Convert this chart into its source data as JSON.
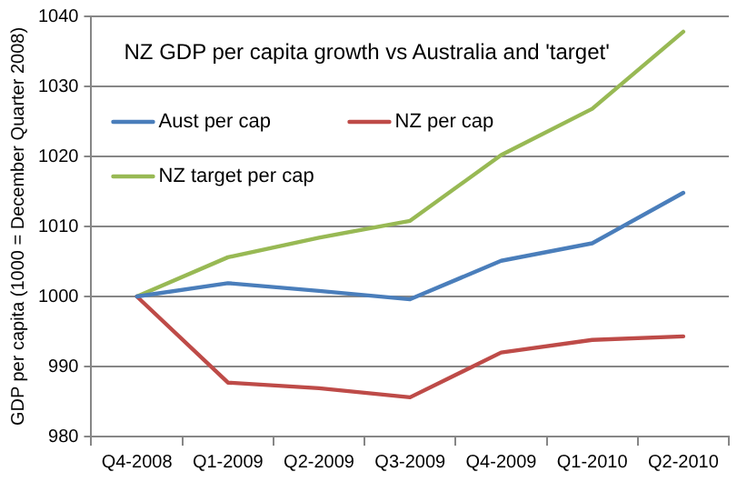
{
  "chart_data": {
    "type": "line",
    "title": "NZ GDP per capita growth vs Australia and 'target'",
    "ylabel": "GDP per capita (1000 = December Quarter 2008)",
    "categories": [
      "Q4-2008",
      "Q1-2009",
      "Q2-2009",
      "Q3-2009",
      "Q4-2009",
      "Q1-2010",
      "Q2-2010"
    ],
    "series": [
      {
        "name": "Aust per cap",
        "color": "#4a7ebb",
        "values": [
          1000,
          1001.9,
          1000.8,
          999.6,
          1005.1,
          1007.6,
          1014.8
        ]
      },
      {
        "name": "NZ per cap",
        "color": "#be4b48",
        "values": [
          1000,
          987.7,
          986.9,
          985.6,
          992.0,
          993.8,
          994.3
        ]
      },
      {
        "name": "NZ target per cap",
        "color": "#98b954",
        "values": [
          1000,
          1005.6,
          1008.4,
          1010.8,
          1020.2,
          1026.8,
          1037.8
        ]
      }
    ],
    "ylim": [
      980,
      1040
    ],
    "yticks": [
      980,
      990,
      1000,
      1010,
      1020,
      1030,
      1040
    ],
    "grid": "y",
    "legend": "top left",
    "marker": "none",
    "line_style": "solid"
  }
}
